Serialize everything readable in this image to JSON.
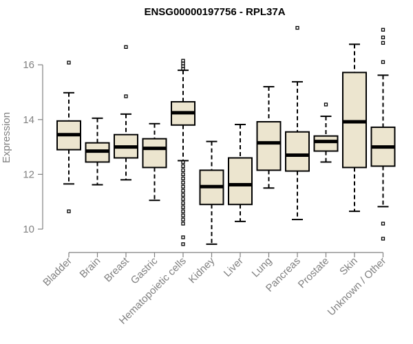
{
  "chart_data": {
    "type": "boxplot",
    "title": "ENSG00000197756 - RPL37A",
    "xlabel": "",
    "ylabel": "Expression",
    "ylim": [
      9.2,
      17.5
    ],
    "yticks": [
      10,
      12,
      14,
      16
    ],
    "categories": [
      "Bladder",
      "Brain",
      "Breast",
      "Gastric",
      "Hematopoietic cells",
      "Kidney",
      "Liver",
      "Lung",
      "Pancreas",
      "Prostate",
      "Skin",
      "Unknown / Other"
    ],
    "box_fill": "#ece5cf",
    "boxes": [
      {
        "category": "Bladder",
        "whisker_low": 11.65,
        "q1": 12.9,
        "median": 13.45,
        "q3": 13.95,
        "whisker_high": 14.98,
        "outliers": [
          16.08,
          10.65
        ]
      },
      {
        "category": "Brain",
        "whisker_low": 11.62,
        "q1": 12.45,
        "median": 12.85,
        "q3": 13.15,
        "whisker_high": 14.05,
        "outliers": []
      },
      {
        "category": "Breast",
        "whisker_low": 11.8,
        "q1": 12.6,
        "median": 13.0,
        "q3": 13.45,
        "whisker_high": 14.2,
        "outliers": [
          16.65,
          14.85
        ]
      },
      {
        "category": "Gastric",
        "whisker_low": 11.05,
        "q1": 12.25,
        "median": 12.95,
        "q3": 13.3,
        "whisker_high": 13.85,
        "outliers": []
      },
      {
        "category": "Hematopoietic cells",
        "whisker_low": 12.5,
        "q1": 13.8,
        "median": 14.25,
        "q3": 14.65,
        "whisker_high": 15.8,
        "outliers": [
          16.15,
          16.05,
          15.95,
          15.85,
          12.45,
          12.3,
          12.15,
          12.0,
          11.85,
          11.7,
          11.55,
          11.4,
          11.25,
          11.1,
          10.95,
          10.8,
          10.65,
          10.5,
          10.35,
          10.2,
          9.7,
          9.45
        ]
      },
      {
        "category": "Kidney",
        "whisker_low": 9.45,
        "q1": 10.9,
        "median": 11.55,
        "q3": 12.15,
        "whisker_high": 13.2,
        "outliers": []
      },
      {
        "category": "Liver",
        "whisker_low": 10.28,
        "q1": 10.9,
        "median": 11.62,
        "q3": 12.6,
        "whisker_high": 13.82,
        "outliers": []
      },
      {
        "category": "Lung",
        "whisker_low": 11.5,
        "q1": 12.15,
        "median": 13.15,
        "q3": 13.92,
        "whisker_high": 15.2,
        "outliers": []
      },
      {
        "category": "Pancreas",
        "whisker_low": 10.35,
        "q1": 12.12,
        "median": 12.7,
        "q3": 13.55,
        "whisker_high": 15.38,
        "outliers": [
          17.35
        ]
      },
      {
        "category": "Prostate",
        "whisker_low": 12.45,
        "q1": 12.85,
        "median": 13.2,
        "q3": 13.4,
        "whisker_high": 14.12,
        "outliers": [
          14.55
        ]
      },
      {
        "category": "Skin",
        "whisker_low": 10.65,
        "q1": 12.25,
        "median": 13.92,
        "q3": 15.72,
        "whisker_high": 16.75,
        "outliers": []
      },
      {
        "category": "Unknown / Other",
        "whisker_low": 10.82,
        "q1": 12.3,
        "median": 13.0,
        "q3": 13.72,
        "whisker_high": 15.62,
        "outliers": [
          17.28,
          17.0,
          16.8,
          16.1,
          10.2,
          9.65
        ]
      }
    ]
  }
}
